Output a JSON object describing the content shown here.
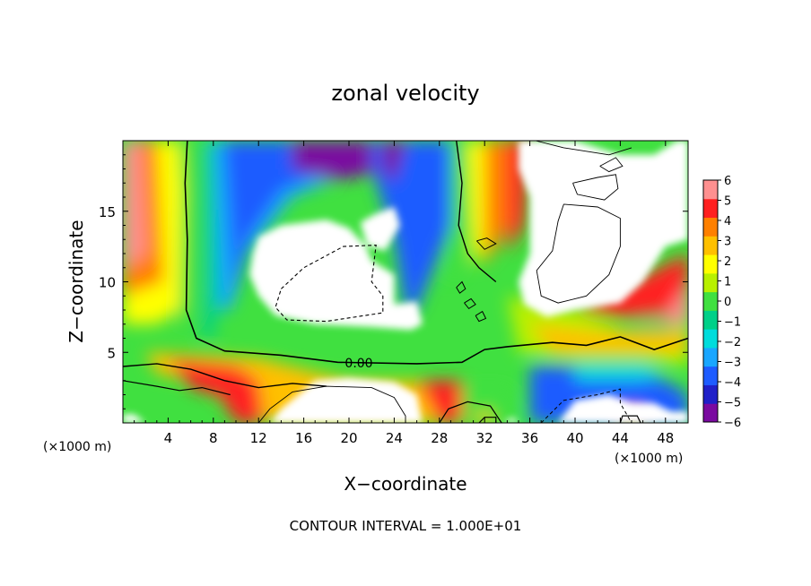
{
  "chart_data": {
    "type": "heatmap",
    "title": "zonal velocity",
    "xlabel": "X−coordinate",
    "ylabel": "Z−coordinate",
    "x_unit_left": "(×1000 m)",
    "x_unit_right": "(×1000 m)",
    "footer": "CONTOUR INTERVAL = 1.000E+01",
    "contour_label": "0.00",
    "xlim": [
      0,
      50
    ],
    "ylim": [
      0,
      20
    ],
    "x_ticks": [
      4,
      8,
      12,
      16,
      20,
      24,
      28,
      32,
      36,
      40,
      44,
      48
    ],
    "y_ticks": [
      5,
      10,
      15
    ],
    "colorbar": {
      "range": [
        -6,
        6
      ],
      "ticks": [
        6,
        5,
        4,
        3,
        2,
        1,
        0,
        -1,
        -2,
        -3,
        -4,
        -5,
        -6
      ],
      "tick_labels": [
        "6",
        "5",
        "4",
        "3",
        "2",
        "1",
        "0",
        "−1",
        "−2",
        "−3",
        "−4",
        "−5",
        "−6"
      ]
    },
    "colors": [
      "#7a0aa0",
      "#2020c8",
      "#1e5cff",
      "#19a6ff",
      "#00dcdc",
      "#00d088",
      "#40e040",
      "#b8f000",
      "#ffff00",
      "#ffc000",
      "#ff8000",
      "#ff2020",
      "#ff9090"
    ],
    "regions": [
      {
        "shape": "saturated-blob",
        "x": [
          11,
          27
        ],
        "z": [
          7,
          14
        ]
      },
      {
        "shape": "saturated-blob",
        "x": [
          35,
          50
        ],
        "z": [
          8,
          20
        ]
      },
      {
        "shape": "saturated-blob",
        "x": [
          12,
          28
        ],
        "z": [
          0,
          3
        ]
      },
      {
        "shape": "saturated-blob",
        "x": [
          36,
          46
        ],
        "z": [
          0,
          2.5
        ]
      }
    ]
  }
}
